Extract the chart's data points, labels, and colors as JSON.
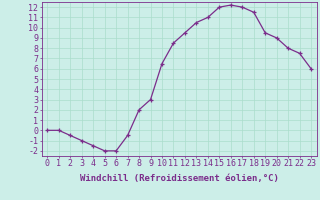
{
  "x": [
    0,
    1,
    2,
    3,
    4,
    5,
    6,
    7,
    8,
    9,
    10,
    11,
    12,
    13,
    14,
    15,
    16,
    17,
    18,
    19,
    20,
    21,
    22,
    23
  ],
  "y": [
    0,
    0,
    -0.5,
    -1,
    -1.5,
    -2,
    -2,
    -0.5,
    2,
    3,
    6.5,
    8.5,
    9.5,
    10.5,
    11,
    12,
    12.2,
    12,
    11.5,
    9.5,
    9,
    8,
    7.5,
    6
  ],
  "line_color": "#7b2d8b",
  "marker_color": "#7b2d8b",
  "bg_color": "#cceee8",
  "grid_color": "#aaddcc",
  "xlabel": "Windchill (Refroidissement éolien,°C)",
  "xlim": [
    -0.5,
    23.5
  ],
  "ylim": [
    -2.5,
    12.5
  ],
  "yticks": [
    -2,
    -1,
    0,
    1,
    2,
    3,
    4,
    5,
    6,
    7,
    8,
    9,
    10,
    11,
    12
  ],
  "xticks": [
    0,
    1,
    2,
    3,
    4,
    5,
    6,
    7,
    8,
    9,
    10,
    11,
    12,
    13,
    14,
    15,
    16,
    17,
    18,
    19,
    20,
    21,
    22,
    23
  ],
  "label_color": "#7b2d8b",
  "font_size": 6.0,
  "xlabel_fontsize": 6.5,
  "lw": 0.9,
  "marker_size": 3.5
}
